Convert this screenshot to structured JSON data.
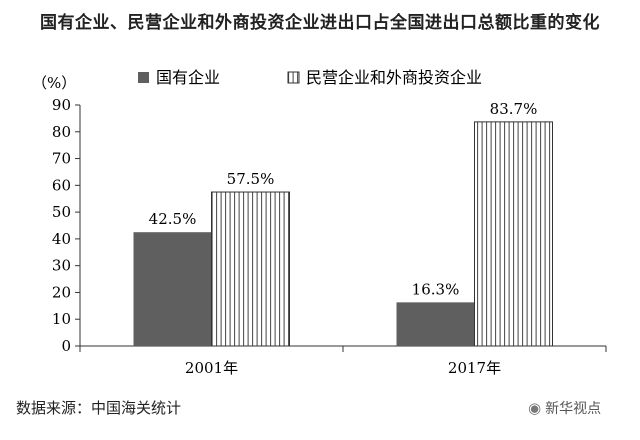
{
  "chart_data": {
    "type": "bar",
    "title": "国有企业、民营企业和外商投资企业进出口占全国进出口总额比重的变化",
    "ylabel": "（%）",
    "categories": [
      "2001年",
      "2017年"
    ],
    "series": [
      {
        "name": "国有企业",
        "values": [
          42.5,
          16.3
        ],
        "labels": [
          "42.5%",
          "16.3%"
        ],
        "color": "#5f5f5f",
        "pattern": "solid"
      },
      {
        "name": "民营企业和外商投资企业",
        "values": [
          57.5,
          83.7
        ],
        "labels": [
          "57.5%",
          "83.7%"
        ],
        "color": "#ffffff",
        "pattern": "vertical-stripes"
      }
    ],
    "ylim": [
      0,
      90
    ],
    "yticks": [
      0,
      10,
      20,
      30,
      40,
      50,
      60,
      70,
      80,
      90
    ],
    "grid": false,
    "legend_position": "top"
  },
  "source": "数据来源：中国海关统计",
  "watermark": {
    "text": "新华视点",
    "icon": "wechat-icon"
  }
}
